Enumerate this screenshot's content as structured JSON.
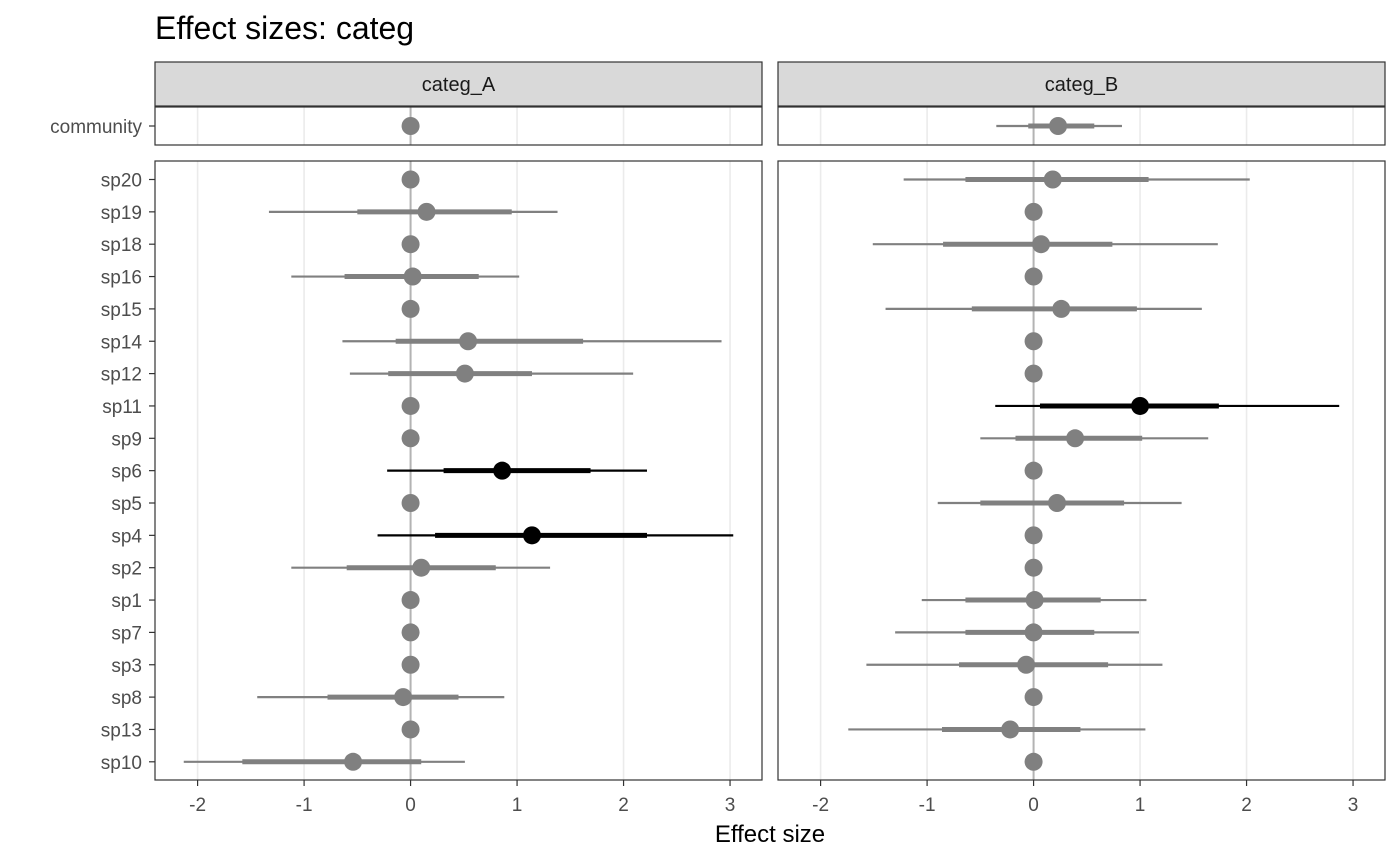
{
  "chart_data": {
    "type": "forest",
    "title": "Effect sizes: categ",
    "xlabel": "Effect size",
    "xlim": [
      -2.4,
      3.3
    ],
    "x_ticks": [
      -2,
      -1,
      0,
      1,
      2,
      3
    ],
    "facets": [
      "categ_A",
      "categ_B"
    ],
    "top_rows": [
      "community"
    ],
    "rows": [
      "sp20",
      "sp19",
      "sp18",
      "sp16",
      "sp15",
      "sp14",
      "sp12",
      "sp11",
      "sp9",
      "sp6",
      "sp5",
      "sp4",
      "sp2",
      "sp1",
      "sp7",
      "sp3",
      "sp8",
      "sp13",
      "sp10"
    ],
    "colors": {
      "default": "#808080",
      "highlight": "#000000",
      "zero_line": "#b3b3b3",
      "grid": "#ebebeb"
    },
    "series": [
      {
        "facet": "categ_A",
        "points": [
          {
            "row": "community",
            "est": 0,
            "lo50": 0,
            "hi50": 0,
            "lo95": 0,
            "hi95": 0,
            "highlight": false
          },
          {
            "row": "sp20",
            "est": 0,
            "lo50": 0,
            "hi50": 0,
            "lo95": 0,
            "hi95": 0,
            "highlight": false
          },
          {
            "row": "sp19",
            "est": 0.15,
            "lo50": -0.5,
            "hi50": 0.95,
            "lo95": -1.33,
            "hi95": 1.38,
            "highlight": false
          },
          {
            "row": "sp18",
            "est": 0,
            "lo50": 0,
            "hi50": 0,
            "lo95": 0,
            "hi95": 0,
            "highlight": false
          },
          {
            "row": "sp16",
            "est": 0.02,
            "lo50": -0.62,
            "hi50": 0.64,
            "lo95": -1.12,
            "hi95": 1.02,
            "highlight": false
          },
          {
            "row": "sp15",
            "est": 0,
            "lo50": 0,
            "hi50": 0,
            "lo95": 0,
            "hi95": 0,
            "highlight": false
          },
          {
            "row": "sp14",
            "est": 0.54,
            "lo50": -0.14,
            "hi50": 1.62,
            "lo95": -0.64,
            "hi95": 2.92,
            "highlight": false
          },
          {
            "row": "sp12",
            "est": 0.51,
            "lo50": -0.21,
            "hi50": 1.14,
            "lo95": -0.57,
            "hi95": 2.09,
            "highlight": false
          },
          {
            "row": "sp11",
            "est": 0,
            "lo50": 0,
            "hi50": 0,
            "lo95": 0,
            "hi95": 0,
            "highlight": false
          },
          {
            "row": "sp9",
            "est": 0,
            "lo50": 0,
            "hi50": 0,
            "lo95": 0,
            "hi95": 0,
            "highlight": false
          },
          {
            "row": "sp6",
            "est": 0.86,
            "lo50": 0.31,
            "hi50": 1.69,
            "lo95": -0.22,
            "hi95": 2.22,
            "highlight": true
          },
          {
            "row": "sp5",
            "est": 0,
            "lo50": 0,
            "hi50": 0,
            "lo95": 0,
            "hi95": 0,
            "highlight": false
          },
          {
            "row": "sp4",
            "est": 1.14,
            "lo50": 0.23,
            "hi50": 2.22,
            "lo95": -0.31,
            "hi95": 3.03,
            "highlight": true
          },
          {
            "row": "sp2",
            "est": 0.1,
            "lo50": -0.6,
            "hi50": 0.8,
            "lo95": -1.12,
            "hi95": 1.31,
            "highlight": false
          },
          {
            "row": "sp1",
            "est": 0,
            "lo50": 0,
            "hi50": 0,
            "lo95": 0,
            "hi95": 0,
            "highlight": false
          },
          {
            "row": "sp7",
            "est": 0,
            "lo50": 0,
            "hi50": 0,
            "lo95": 0,
            "hi95": 0,
            "highlight": false
          },
          {
            "row": "sp3",
            "est": 0,
            "lo50": 0,
            "hi50": 0,
            "lo95": 0,
            "hi95": 0,
            "highlight": false
          },
          {
            "row": "sp8",
            "est": -0.07,
            "lo50": -0.78,
            "hi50": 0.45,
            "lo95": -1.44,
            "hi95": 0.88,
            "highlight": false
          },
          {
            "row": "sp13",
            "est": 0,
            "lo50": 0,
            "hi50": 0,
            "lo95": 0,
            "hi95": 0,
            "highlight": false
          },
          {
            "row": "sp10",
            "est": -0.54,
            "lo50": -1.58,
            "hi50": 0.1,
            "lo95": -2.13,
            "hi95": 0.51,
            "highlight": false
          }
        ]
      },
      {
        "facet": "categ_B",
        "points": [
          {
            "row": "community",
            "est": 0.23,
            "lo50": -0.05,
            "hi50": 0.57,
            "lo95": -0.35,
            "hi95": 0.83,
            "highlight": false
          },
          {
            "row": "sp20",
            "est": 0.18,
            "lo50": -0.64,
            "hi50": 1.08,
            "lo95": -1.22,
            "hi95": 2.03,
            "highlight": false
          },
          {
            "row": "sp19",
            "est": 0,
            "lo50": 0,
            "hi50": 0,
            "lo95": 0,
            "hi95": 0,
            "highlight": false
          },
          {
            "row": "sp18",
            "est": 0.07,
            "lo50": -0.85,
            "hi50": 0.74,
            "lo95": -1.51,
            "hi95": 1.73,
            "highlight": false
          },
          {
            "row": "sp16",
            "est": 0,
            "lo50": 0,
            "hi50": 0,
            "lo95": 0,
            "hi95": 0,
            "highlight": false
          },
          {
            "row": "sp15",
            "est": 0.26,
            "lo50": -0.58,
            "hi50": 0.97,
            "lo95": -1.39,
            "hi95": 1.58,
            "highlight": false
          },
          {
            "row": "sp14",
            "est": 0,
            "lo50": 0,
            "hi50": 0,
            "lo95": 0,
            "hi95": 0,
            "highlight": false
          },
          {
            "row": "sp12",
            "est": 0,
            "lo50": 0,
            "hi50": 0,
            "lo95": 0,
            "hi95": 0,
            "highlight": false
          },
          {
            "row": "sp11",
            "est": 1.0,
            "lo50": 0.06,
            "hi50": 1.74,
            "lo95": -0.36,
            "hi95": 2.87,
            "highlight": true
          },
          {
            "row": "sp9",
            "est": 0.39,
            "lo50": -0.17,
            "hi50": 1.02,
            "lo95": -0.5,
            "hi95": 1.64,
            "highlight": false
          },
          {
            "row": "sp6",
            "est": 0,
            "lo50": 0,
            "hi50": 0,
            "lo95": 0,
            "hi95": 0,
            "highlight": false
          },
          {
            "row": "sp5",
            "est": 0.22,
            "lo50": -0.5,
            "hi50": 0.85,
            "lo95": -0.9,
            "hi95": 1.39,
            "highlight": false
          },
          {
            "row": "sp4",
            "est": 0,
            "lo50": 0,
            "hi50": 0,
            "lo95": 0,
            "hi95": 0,
            "highlight": false
          },
          {
            "row": "sp2",
            "est": 0,
            "lo50": 0,
            "hi50": 0,
            "lo95": 0,
            "hi95": 0,
            "highlight": false
          },
          {
            "row": "sp1",
            "est": 0.01,
            "lo50": -0.64,
            "hi50": 0.63,
            "lo95": -1.05,
            "hi95": 1.06,
            "highlight": false
          },
          {
            "row": "sp7",
            "est": 0,
            "lo50": -0.64,
            "hi50": 0.57,
            "lo95": -1.3,
            "hi95": 0.99,
            "highlight": false
          },
          {
            "row": "sp3",
            "est": -0.07,
            "lo50": -0.7,
            "hi50": 0.7,
            "lo95": -1.57,
            "hi95": 1.21,
            "highlight": false
          },
          {
            "row": "sp8",
            "est": 0,
            "lo50": 0,
            "hi50": 0,
            "lo95": 0,
            "hi95": 0,
            "highlight": false
          },
          {
            "row": "sp13",
            "est": -0.22,
            "lo50": -0.86,
            "hi50": 0.44,
            "lo95": -1.74,
            "hi95": 1.05,
            "highlight": false
          },
          {
            "row": "sp10",
            "est": 0,
            "lo50": 0,
            "hi50": 0,
            "lo95": 0,
            "hi95": 0,
            "highlight": false
          }
        ]
      }
    ]
  }
}
